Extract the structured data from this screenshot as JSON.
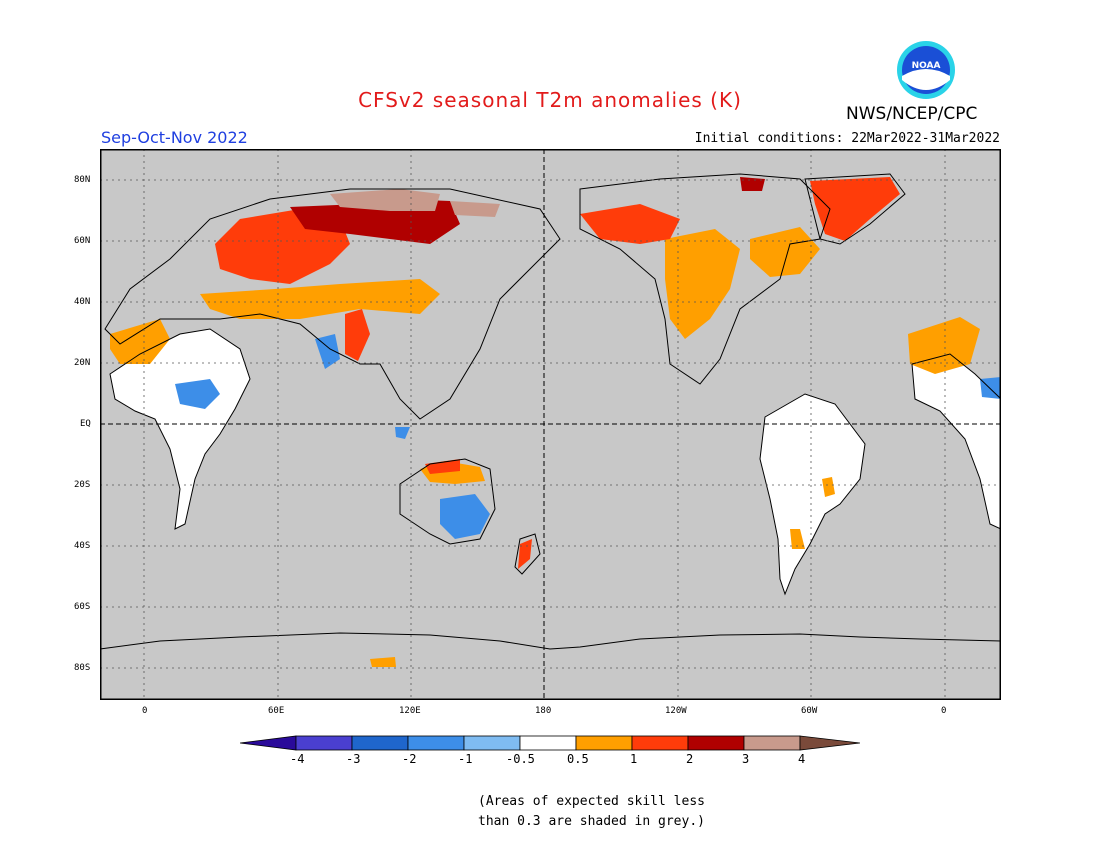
{
  "title": "CFSv2 seasonal T2m anomalies (K)",
  "agency": "NWS/NCEP/CPC",
  "logo_text": "NOAA",
  "season": "Sep-Oct-Nov 2022",
  "initial_conditions": "Initial conditions: 22Mar2022-31Mar2022",
  "latitude_labels": [
    "80N",
    "60N",
    "40N",
    "20N",
    "EQ",
    "20S",
    "40S",
    "60S",
    "80S"
  ],
  "longitude_labels": [
    "0",
    "60E",
    "120E",
    "180",
    "120W",
    "60W",
    "0"
  ],
  "colorbar": {
    "labels": [
      "-4",
      "-3",
      "-2",
      "-1",
      "-0.5",
      "0.5",
      "1",
      "2",
      "3",
      "4"
    ],
    "colors": [
      "#2a0a9a",
      "#4a3fd0",
      "#1f66cc",
      "#3d8ee8",
      "#7fbcf2",
      "#ffffff",
      "#ff9f00",
      "#ff3c0a",
      "#b00000",
      "#c89a8c",
      "#7a4a3a"
    ]
  },
  "note_lines": [
    "(Areas of expected skill less",
    "than 0.3 are shaded in grey.)"
  ],
  "colors": {
    "mask_grey": "#c8c8c8",
    "title_red": "#e21b1b",
    "season_blue": "#1f3fe0"
  }
}
